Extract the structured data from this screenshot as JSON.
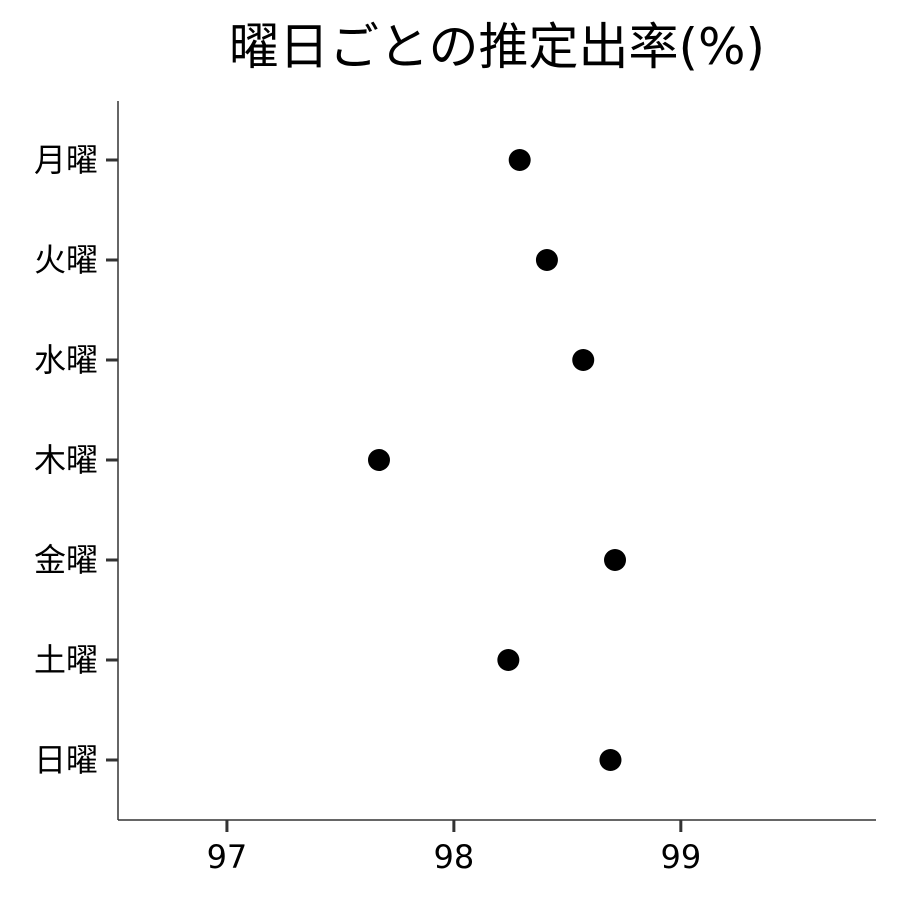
{
  "chart_data": {
    "type": "scatter",
    "title": "曜日ごとの推定出率(%)",
    "xlabel": "",
    "ylabel": "",
    "xlim": [
      96.52,
      99.86
    ],
    "x_ticks": [
      97,
      98,
      99
    ],
    "grid": false,
    "legend": "none",
    "point_color": "#000000",
    "categories": [
      "月曜",
      "火曜",
      "水曜",
      "木曜",
      "金曜",
      "土曜",
      "日曜"
    ],
    "values": [
      98.29,
      98.41,
      98.57,
      97.67,
      98.71,
      98.24,
      98.69
    ]
  }
}
